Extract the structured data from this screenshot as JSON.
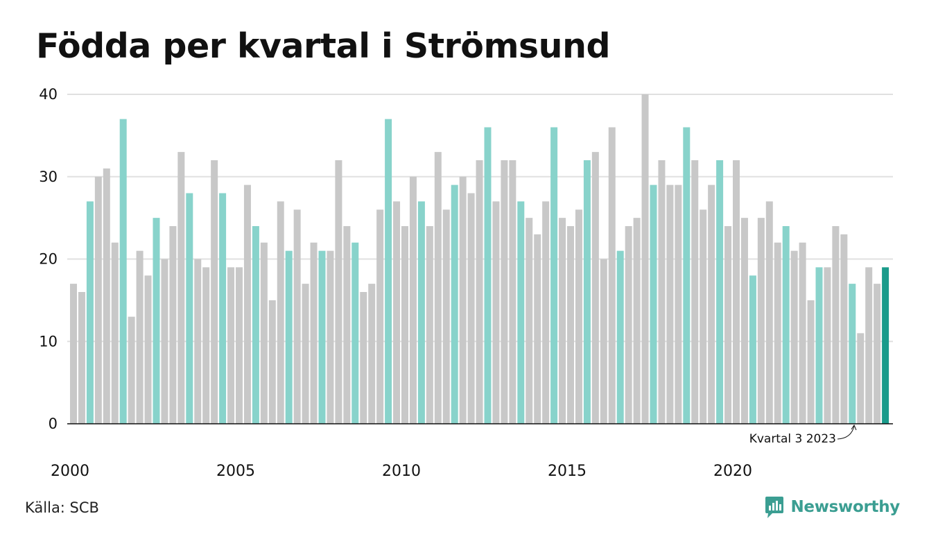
{
  "title": "Födda per kvartal i Strömsund",
  "source": "Källa: SCB",
  "brand": "Newsworthy",
  "colors": {
    "other_quarter": "#c8c8c8",
    "same_quarter": "#88d3cb",
    "latest": "#1a9b8b",
    "grid": "#e0e0e0",
    "axis": "#111111"
  },
  "chart_data": {
    "type": "bar",
    "title": "Födda per kvartal i Strömsund",
    "xlabel": "",
    "ylabel": "",
    "ylim": [
      0,
      40
    ],
    "yticks": [
      0,
      10,
      20,
      30,
      40
    ],
    "xticks": [
      "2000",
      "2005",
      "2010",
      "2015",
      "2020"
    ],
    "start": "2000 Q1",
    "highlight_quarter": 3,
    "annotation": "Kvartal 3 2023",
    "grid": true,
    "values": [
      17,
      16,
      27,
      30,
      31,
      22,
      37,
      13,
      21,
      18,
      25,
      20,
      24,
      33,
      28,
      20,
      19,
      32,
      28,
      19,
      19,
      29,
      24,
      22,
      15,
      27,
      21,
      26,
      17,
      22,
      21,
      21,
      32,
      24,
      22,
      16,
      17,
      26,
      37,
      27,
      24,
      30,
      27,
      24,
      33,
      26,
      29,
      30,
      28,
      32,
      36,
      27,
      32,
      32,
      27,
      25,
      23,
      27,
      36,
      25,
      24,
      26,
      32,
      33,
      20,
      36,
      21,
      24,
      25,
      40,
      29,
      32,
      29,
      29,
      36,
      32,
      26,
      29,
      32,
      24,
      32,
      25,
      18,
      25,
      27,
      22,
      24,
      21,
      22,
      15,
      19,
      19,
      24,
      23,
      17,
      11,
      19,
      17,
      19
    ]
  }
}
